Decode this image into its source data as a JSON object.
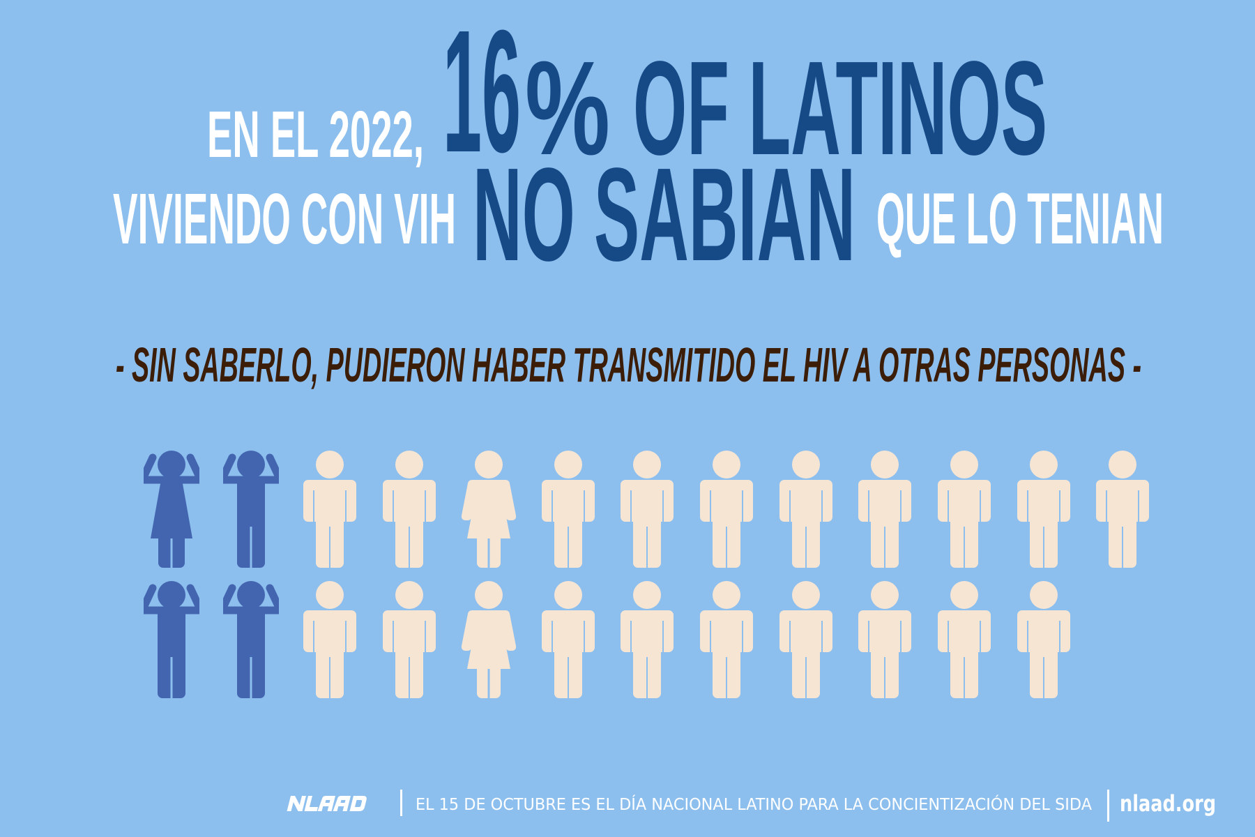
{
  "headline": {
    "line1_prefix": "EN EL 2022,",
    "stat_number": "16",
    "stat_percent": "%",
    "line1_emphasis": "OF LATINOS",
    "line2_prefix": "VIVIENDO CON VIH",
    "line2_emphasis": "NO SABIAN",
    "line2_suffix": "QUE LO TENIAN"
  },
  "subtitle": "- SIN SABERLO, PUDIERON HABER TRANSMITIDO EL HIV A OTRAS PERSONAS -",
  "pictogram": {
    "total": 25,
    "highlighted": 4,
    "rows": [
      [
        "woman-raised",
        "man-raised",
        "man",
        "man",
        "woman",
        "man",
        "man",
        "man",
        "man",
        "man",
        "man",
        "man",
        "man"
      ],
      [
        "man-raised",
        "man-raised",
        "man",
        "man",
        "woman",
        "man",
        "man",
        "man",
        "man",
        "man",
        "man",
        "man"
      ]
    ]
  },
  "footer": {
    "logo_text": "NLAAD",
    "message": "EL 15 DE OCTUBRE ES EL DÍA NACIONAL LATINO PARA LA CONCIENTIZACIÓN DEL SIDA",
    "url": "nlaad.org"
  },
  "colors": {
    "background": "#8cbfee",
    "headline_emphasis": "#154a87",
    "headline_regular": "#ffffff",
    "subtitle": "#3b1d08",
    "figure_highlight": "#4365b0",
    "figure_default": "#f7e5d4"
  }
}
